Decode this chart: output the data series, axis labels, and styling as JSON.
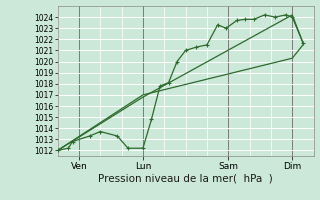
{
  "background_color": "#cce8d8",
  "grid_color": "#ffffff",
  "line_color": "#2d6a2d",
  "marker_color": "#2d6a2d",
  "ylim": [
    1011.5,
    1025.0
  ],
  "yticks": [
    1012,
    1013,
    1014,
    1015,
    1016,
    1017,
    1018,
    1019,
    1020,
    1021,
    1022,
    1023,
    1024
  ],
  "xlabel": "Pression niveau de la mer(  hPa  )",
  "xlabel_fontsize": 7.5,
  "xtick_labels": [
    "Ven",
    "Lun",
    "Sam",
    "Dim"
  ],
  "xtick_positions": [
    1,
    4,
    8,
    11
  ],
  "xlim": [
    0,
    12
  ],
  "num_xcells": 12,
  "line1_x": [
    0.0,
    0.5,
    0.7,
    1.5,
    2.0,
    2.8,
    3.3,
    4.0,
    4.4,
    4.8,
    5.2,
    5.6,
    6.0,
    6.5,
    7.0,
    7.5,
    7.9,
    8.4,
    8.8,
    9.2,
    9.7,
    10.2,
    10.7,
    11.0,
    11.5
  ],
  "line1_y": [
    1012.0,
    1012.2,
    1012.8,
    1013.3,
    1013.7,
    1013.3,
    1012.2,
    1012.2,
    1014.8,
    1017.8,
    1018.1,
    1020.0,
    1021.0,
    1021.3,
    1021.5,
    1023.3,
    1023.0,
    1023.7,
    1023.8,
    1023.8,
    1024.2,
    1024.0,
    1024.2,
    1024.0,
    1021.7
  ],
  "line2_x": [
    0.0,
    4.0,
    11.0,
    11.5
  ],
  "line2_y": [
    1012.0,
    1016.8,
    1024.2,
    1021.7
  ],
  "line3_x": [
    0.0,
    4.0,
    11.0,
    11.5
  ],
  "line3_y": [
    1012.0,
    1017.0,
    1020.3,
    1021.5
  ],
  "figsize": [
    3.2,
    2.0
  ],
  "dpi": 100
}
